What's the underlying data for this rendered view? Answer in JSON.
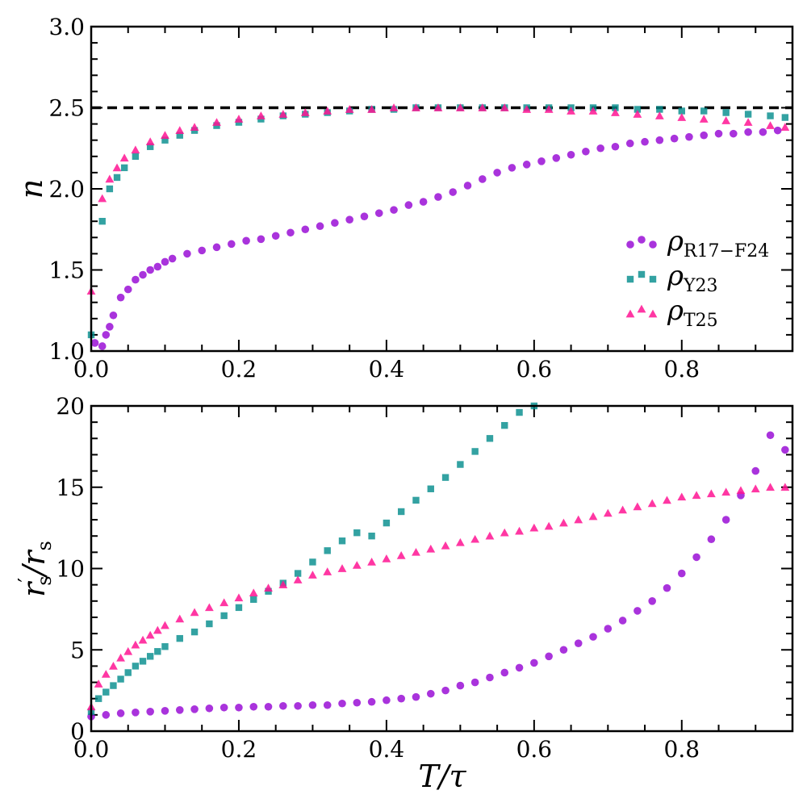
{
  "chart_data": [
    {
      "type": "scatter",
      "panel": "top",
      "xlabel": "",
      "ylabel": "n",
      "xlim": [
        0.0,
        0.95
      ],
      "ylim": [
        1.0,
        3.0
      ],
      "xticks": [
        "0.0",
        "0.2",
        "0.4",
        "0.6",
        "0.8"
      ],
      "yticks": [
        "1.0",
        "1.5",
        "2.0",
        "2.5",
        "3.0"
      ],
      "reference_line": {
        "y": 2.5,
        "style": "dashed",
        "color": "#000000"
      },
      "legend": {
        "placement": "lower-right"
      },
      "series": [
        {
          "name": "ρ",
          "subscript": "R17−F24",
          "marker": "circle",
          "color": "#9400D3",
          "points": [
            [
              0.005,
              1.05
            ],
            [
              0.015,
              1.03
            ],
            [
              0.02,
              1.1
            ],
            [
              0.025,
              1.15
            ],
            [
              0.03,
              1.22
            ],
            [
              0.04,
              1.33
            ],
            [
              0.05,
              1.38
            ],
            [
              0.06,
              1.44
            ],
            [
              0.07,
              1.47
            ],
            [
              0.08,
              1.5
            ],
            [
              0.09,
              1.52
            ],
            [
              0.1,
              1.55
            ],
            [
              0.11,
              1.57
            ],
            [
              0.13,
              1.6
            ],
            [
              0.15,
              1.62
            ],
            [
              0.17,
              1.64
            ],
            [
              0.19,
              1.66
            ],
            [
              0.21,
              1.68
            ],
            [
              0.23,
              1.69
            ],
            [
              0.25,
              1.71
            ],
            [
              0.27,
              1.73
            ],
            [
              0.29,
              1.75
            ],
            [
              0.31,
              1.77
            ],
            [
              0.33,
              1.79
            ],
            [
              0.35,
              1.81
            ],
            [
              0.37,
              1.83
            ],
            [
              0.39,
              1.85
            ],
            [
              0.41,
              1.87
            ],
            [
              0.43,
              1.9
            ],
            [
              0.45,
              1.92
            ],
            [
              0.47,
              1.95
            ],
            [
              0.49,
              1.98
            ],
            [
              0.51,
              2.02
            ],
            [
              0.53,
              2.06
            ],
            [
              0.55,
              2.1
            ],
            [
              0.57,
              2.13
            ],
            [
              0.59,
              2.15
            ],
            [
              0.61,
              2.17
            ],
            [
              0.63,
              2.19
            ],
            [
              0.65,
              2.21
            ],
            [
              0.67,
              2.23
            ],
            [
              0.69,
              2.25
            ],
            [
              0.71,
              2.26
            ],
            [
              0.73,
              2.28
            ],
            [
              0.75,
              2.29
            ],
            [
              0.77,
              2.3
            ],
            [
              0.79,
              2.31
            ],
            [
              0.81,
              2.32
            ],
            [
              0.83,
              2.33
            ],
            [
              0.85,
              2.34
            ],
            [
              0.87,
              2.34
            ],
            [
              0.89,
              2.35
            ],
            [
              0.91,
              2.35
            ],
            [
              0.93,
              2.36
            ]
          ]
        },
        {
          "name": "ρ",
          "subscript": "Y23",
          "marker": "square",
          "color": "#008B8B",
          "points": [
            [
              0.0,
              1.1
            ],
            [
              0.015,
              1.8
            ],
            [
              0.025,
              2.0
            ],
            [
              0.035,
              2.07
            ],
            [
              0.045,
              2.13
            ],
            [
              0.06,
              2.2
            ],
            [
              0.08,
              2.26
            ],
            [
              0.1,
              2.3
            ],
            [
              0.12,
              2.33
            ],
            [
              0.14,
              2.36
            ],
            [
              0.17,
              2.39
            ],
            [
              0.2,
              2.41
            ],
            [
              0.23,
              2.43
            ],
            [
              0.26,
              2.45
            ],
            [
              0.29,
              2.46
            ],
            [
              0.32,
              2.47
            ],
            [
              0.35,
              2.48
            ],
            [
              0.38,
              2.49
            ],
            [
              0.41,
              2.49
            ],
            [
              0.44,
              2.5
            ],
            [
              0.47,
              2.5
            ],
            [
              0.5,
              2.5
            ],
            [
              0.53,
              2.5
            ],
            [
              0.56,
              2.5
            ],
            [
              0.59,
              2.5
            ],
            [
              0.62,
              2.5
            ],
            [
              0.65,
              2.5
            ],
            [
              0.68,
              2.5
            ],
            [
              0.71,
              2.5
            ],
            [
              0.74,
              2.49
            ],
            [
              0.77,
              2.49
            ],
            [
              0.8,
              2.48
            ],
            [
              0.83,
              2.48
            ],
            [
              0.86,
              2.47
            ],
            [
              0.89,
              2.46
            ],
            [
              0.92,
              2.45
            ],
            [
              0.94,
              2.44
            ]
          ]
        },
        {
          "name": "ρ",
          "subscript": "T25",
          "marker": "triangle",
          "color": "#FF1493",
          "points": [
            [
              0.0,
              1.37
            ],
            [
              0.015,
              1.94
            ],
            [
              0.025,
              2.06
            ],
            [
              0.035,
              2.13
            ],
            [
              0.045,
              2.19
            ],
            [
              0.06,
              2.24
            ],
            [
              0.08,
              2.29
            ],
            [
              0.1,
              2.33
            ],
            [
              0.12,
              2.36
            ],
            [
              0.14,
              2.38
            ],
            [
              0.17,
              2.41
            ],
            [
              0.2,
              2.43
            ],
            [
              0.23,
              2.45
            ],
            [
              0.26,
              2.46
            ],
            [
              0.29,
              2.47
            ],
            [
              0.32,
              2.48
            ],
            [
              0.35,
              2.49
            ],
            [
              0.38,
              2.49
            ],
            [
              0.41,
              2.5
            ],
            [
              0.44,
              2.5
            ],
            [
              0.47,
              2.5
            ],
            [
              0.5,
              2.5
            ],
            [
              0.53,
              2.5
            ],
            [
              0.56,
              2.5
            ],
            [
              0.59,
              2.49
            ],
            [
              0.62,
              2.49
            ],
            [
              0.65,
              2.48
            ],
            [
              0.68,
              2.48
            ],
            [
              0.71,
              2.47
            ],
            [
              0.74,
              2.46
            ],
            [
              0.77,
              2.45
            ],
            [
              0.8,
              2.44
            ],
            [
              0.83,
              2.43
            ],
            [
              0.86,
              2.42
            ],
            [
              0.89,
              2.41
            ],
            [
              0.92,
              2.39
            ],
            [
              0.94,
              2.38
            ]
          ]
        }
      ]
    },
    {
      "type": "scatter",
      "panel": "bottom",
      "xlabel": "T/τ",
      "ylabel": "r′s/rs",
      "xlim": [
        0.0,
        0.95
      ],
      "ylim": [
        0,
        20
      ],
      "xticks": [
        "0.0",
        "0.2",
        "0.4",
        "0.6",
        "0.8"
      ],
      "yticks": [
        "0",
        "5",
        "10",
        "15",
        "20"
      ],
      "series": [
        {
          "name": "ρ R17−F24",
          "marker": "circle",
          "color": "#9400D3",
          "points": [
            [
              0.0,
              0.9
            ],
            [
              0.02,
              1.0
            ],
            [
              0.04,
              1.1
            ],
            [
              0.06,
              1.15
            ],
            [
              0.08,
              1.2
            ],
            [
              0.1,
              1.25
            ],
            [
              0.12,
              1.3
            ],
            [
              0.14,
              1.35
            ],
            [
              0.16,
              1.4
            ],
            [
              0.18,
              1.45
            ],
            [
              0.2,
              1.45
            ],
            [
              0.22,
              1.5
            ],
            [
              0.24,
              1.5
            ],
            [
              0.26,
              1.55
            ],
            [
              0.28,
              1.55
            ],
            [
              0.3,
              1.6
            ],
            [
              0.32,
              1.6
            ],
            [
              0.34,
              1.7
            ],
            [
              0.36,
              1.75
            ],
            [
              0.38,
              1.8
            ],
            [
              0.4,
              1.9
            ],
            [
              0.42,
              2.0
            ],
            [
              0.44,
              2.1
            ],
            [
              0.46,
              2.3
            ],
            [
              0.48,
              2.5
            ],
            [
              0.5,
              2.8
            ],
            [
              0.52,
              3.0
            ],
            [
              0.54,
              3.3
            ],
            [
              0.56,
              3.6
            ],
            [
              0.58,
              3.9
            ],
            [
              0.6,
              4.2
            ],
            [
              0.62,
              4.6
            ],
            [
              0.64,
              5.0
            ],
            [
              0.66,
              5.4
            ],
            [
              0.68,
              5.8
            ],
            [
              0.7,
              6.3
            ],
            [
              0.72,
              6.8
            ],
            [
              0.74,
              7.4
            ],
            [
              0.76,
              8.0
            ],
            [
              0.78,
              8.8
            ],
            [
              0.8,
              9.7
            ],
            [
              0.82,
              10.7
            ],
            [
              0.84,
              11.8
            ],
            [
              0.86,
              13.0
            ],
            [
              0.88,
              14.5
            ],
            [
              0.9,
              16.0
            ],
            [
              0.92,
              18.2
            ],
            [
              0.94,
              17.3
            ]
          ]
        },
        {
          "name": "ρ Y23",
          "marker": "square",
          "color": "#008B8B",
          "points": [
            [
              0.0,
              1.2
            ],
            [
              0.01,
              2.0
            ],
            [
              0.02,
              2.4
            ],
            [
              0.03,
              2.8
            ],
            [
              0.04,
              3.2
            ],
            [
              0.05,
              3.6
            ],
            [
              0.06,
              4.0
            ],
            [
              0.07,
              4.3
            ],
            [
              0.08,
              4.6
            ],
            [
              0.09,
              4.9
            ],
            [
              0.1,
              5.2
            ],
            [
              0.12,
              5.7
            ],
            [
              0.14,
              6.1
            ],
            [
              0.16,
              6.6
            ],
            [
              0.18,
              7.1
            ],
            [
              0.2,
              7.6
            ],
            [
              0.22,
              8.1
            ],
            [
              0.24,
              8.6
            ],
            [
              0.26,
              9.1
            ],
            [
              0.28,
              9.7
            ],
            [
              0.3,
              10.4
            ],
            [
              0.32,
              11.1
            ],
            [
              0.34,
              11.7
            ],
            [
              0.36,
              12.2
            ],
            [
              0.38,
              12.0
            ],
            [
              0.4,
              12.8
            ],
            [
              0.42,
              13.5
            ],
            [
              0.44,
              14.2
            ],
            [
              0.46,
              14.9
            ],
            [
              0.48,
              15.6
            ],
            [
              0.5,
              16.4
            ],
            [
              0.52,
              17.2
            ],
            [
              0.54,
              18.0
            ],
            [
              0.56,
              18.8
            ],
            [
              0.58,
              19.6
            ],
            [
              0.6,
              20.0
            ]
          ]
        },
        {
          "name": "ρ T25",
          "marker": "triangle",
          "color": "#FF1493",
          "points": [
            [
              0.0,
              1.5
            ],
            [
              0.01,
              2.9
            ],
            [
              0.02,
              3.5
            ],
            [
              0.03,
              4.0
            ],
            [
              0.04,
              4.5
            ],
            [
              0.05,
              4.9
            ],
            [
              0.06,
              5.3
            ],
            [
              0.07,
              5.6
            ],
            [
              0.08,
              5.9
            ],
            [
              0.09,
              6.2
            ],
            [
              0.1,
              6.5
            ],
            [
              0.12,
              6.9
            ],
            [
              0.14,
              7.3
            ],
            [
              0.16,
              7.6
            ],
            [
              0.18,
              7.9
            ],
            [
              0.2,
              8.2
            ],
            [
              0.22,
              8.5
            ],
            [
              0.24,
              8.8
            ],
            [
              0.26,
              9.0
            ],
            [
              0.28,
              9.3
            ],
            [
              0.3,
              9.6
            ],
            [
              0.32,
              9.8
            ],
            [
              0.34,
              10.0
            ],
            [
              0.36,
              10.2
            ],
            [
              0.38,
              10.4
            ],
            [
              0.4,
              10.6
            ],
            [
              0.42,
              10.8
            ],
            [
              0.44,
              11.0
            ],
            [
              0.46,
              11.2
            ],
            [
              0.48,
              11.4
            ],
            [
              0.5,
              11.6
            ],
            [
              0.52,
              11.8
            ],
            [
              0.54,
              12.0
            ],
            [
              0.56,
              12.2
            ],
            [
              0.58,
              12.3
            ],
            [
              0.6,
              12.5
            ],
            [
              0.62,
              12.6
            ],
            [
              0.64,
              12.8
            ],
            [
              0.66,
              13.0
            ],
            [
              0.68,
              13.2
            ],
            [
              0.7,
              13.4
            ],
            [
              0.72,
              13.6
            ],
            [
              0.74,
              13.8
            ],
            [
              0.76,
              14.0
            ],
            [
              0.78,
              14.2
            ],
            [
              0.8,
              14.4
            ],
            [
              0.82,
              14.5
            ],
            [
              0.84,
              14.6
            ],
            [
              0.86,
              14.7
            ],
            [
              0.88,
              14.8
            ],
            [
              0.9,
              14.9
            ],
            [
              0.92,
              15.0
            ],
            [
              0.94,
              15.0
            ]
          ]
        }
      ]
    }
  ]
}
